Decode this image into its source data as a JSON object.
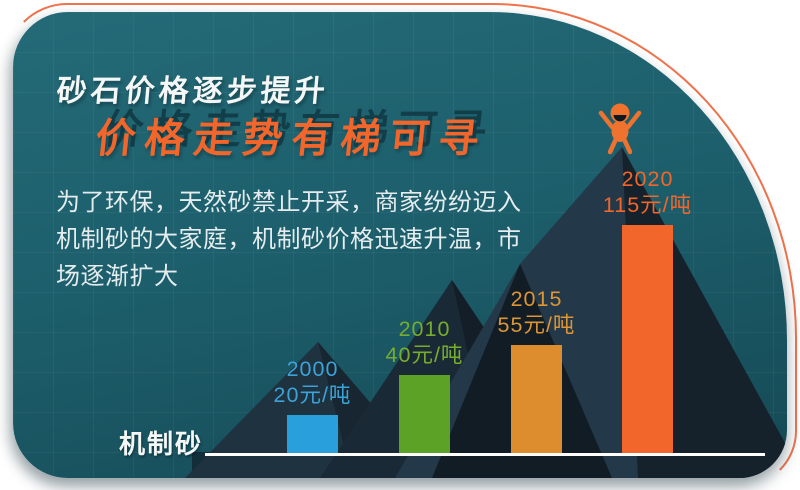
{
  "header": {
    "title": "砂石价格逐步提升",
    "subtitle": "价格走势有梯可寻"
  },
  "description": "为了环保，天然砂禁止开采，商家纷纷迈入\n机制砂的大家庭，机制砂价格迅速升温，市\n场逐渐扩大",
  "chart_data": {
    "type": "bar",
    "categories": [
      "2000",
      "2010",
      "2015",
      "2020"
    ],
    "values": [
      20,
      40,
      55,
      115
    ],
    "unit": "元/吨",
    "value_labels": [
      "20元/吨",
      "40元/吨",
      "55元/吨",
      "115元/吨"
    ],
    "bar_colors": [
      "#29a0dc",
      "#5ba226",
      "#dd8c2e",
      "#f2662b"
    ],
    "label_colors": [
      "#3ba3d8",
      "#77ad2e",
      "#dd9536",
      "#f2662b"
    ],
    "xlabel": "机制砂",
    "ylim": [
      0,
      120
    ],
    "legend_position": "none",
    "grid": "subtle square grid on teal background",
    "baseline_color": "#ffffff"
  },
  "decor": {
    "accent_color": "#f0734c",
    "panel_color": "#1d5f6c",
    "title_color": "#f5f7f7",
    "subtitle_color": "#f2662b",
    "mountain_colors": [
      "#1e3240",
      "#1a2936",
      "#233848",
      "#111c25",
      "#15222c"
    ],
    "climber_color": "#f0722f",
    "climber_icon": "cheering-person"
  }
}
